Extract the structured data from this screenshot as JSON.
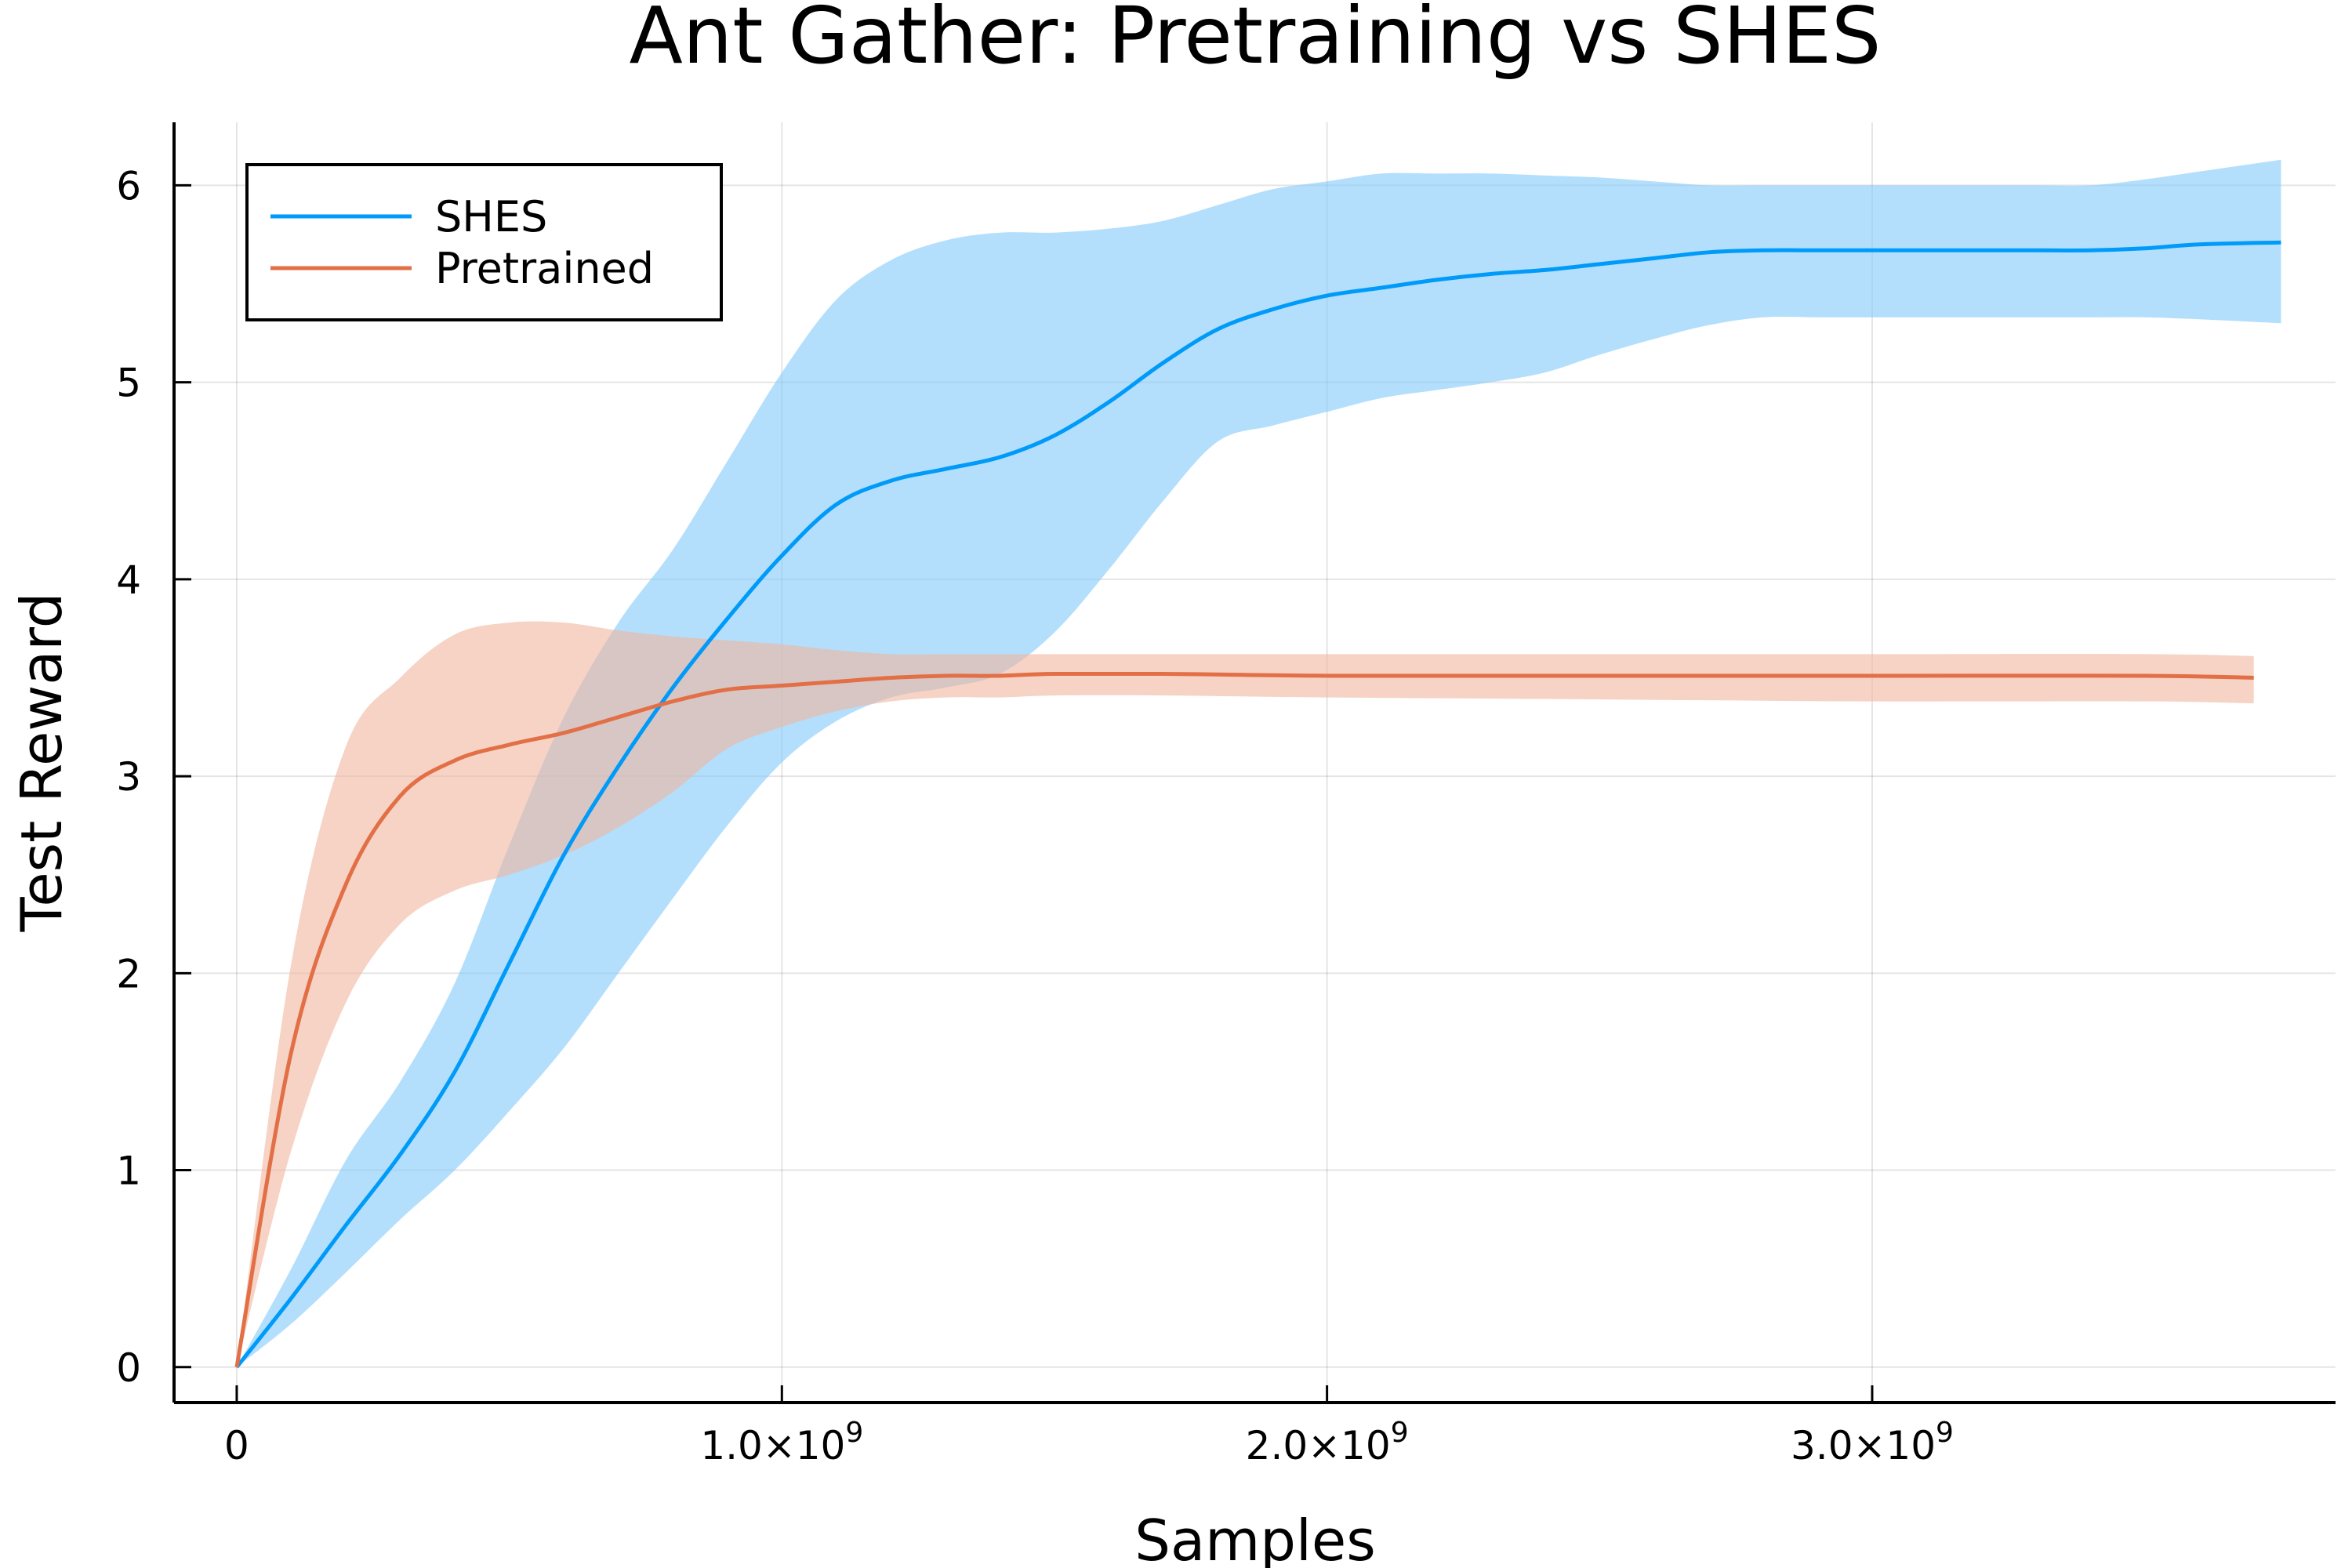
{
  "chart_data": {
    "type": "line",
    "title": "Ant Gather: Pretraining vs SHES",
    "xlabel": "Samples",
    "ylabel": "Test Reward",
    "xlim": [
      -115000000,
      3850000000
    ],
    "ylim": [
      -0.18,
      6.32
    ],
    "grid": true,
    "legend_position": "top-left",
    "x_ticks": [
      {
        "value": 0,
        "mantissa": "0",
        "exponent": ""
      },
      {
        "value": 1000000000,
        "mantissa": "1.0×10",
        "exponent": "9"
      },
      {
        "value": 2000000000,
        "mantissa": "2.0×10",
        "exponent": "9"
      },
      {
        "value": 3000000000,
        "mantissa": "3.0×10",
        "exponent": "9"
      }
    ],
    "y_ticks": [
      0,
      1,
      2,
      3,
      4,
      5,
      6
    ],
    "series": [
      {
        "name": "SHES",
        "color": "#009af9",
        "band_color": "#80c9fb",
        "x": [
          0,
          100000000,
          200000000,
          300000000,
          400000000,
          500000000,
          600000000,
          700000000,
          800000000,
          900000000,
          1000000000,
          1100000000,
          1200000000,
          1300000000,
          1400000000,
          1500000000,
          1600000000,
          1700000000,
          1800000000,
          1900000000,
          2000000000,
          2100000000,
          2200000000,
          2300000000,
          2400000000,
          2500000000,
          2600000000,
          2700000000,
          2800000000,
          2900000000,
          3000000000,
          3100000000,
          3200000000,
          3300000000,
          3400000000,
          3500000000,
          3600000000,
          3750000000
        ],
        "y": [
          0,
          0.35,
          0.72,
          1.08,
          1.5,
          2.05,
          2.6,
          3.05,
          3.45,
          3.8,
          4.12,
          4.38,
          4.5,
          4.56,
          4.62,
          4.73,
          4.9,
          5.1,
          5.27,
          5.37,
          5.44,
          5.48,
          5.52,
          5.55,
          5.57,
          5.6,
          5.63,
          5.66,
          5.67,
          5.67,
          5.67,
          5.67,
          5.67,
          5.67,
          5.67,
          5.68,
          5.7,
          5.71
        ],
        "upper": [
          0,
          0.5,
          1.05,
          1.45,
          1.95,
          2.65,
          3.3,
          3.78,
          4.15,
          4.6,
          5.05,
          5.42,
          5.62,
          5.72,
          5.76,
          5.76,
          5.78,
          5.82,
          5.9,
          5.98,
          6.02,
          6.06,
          6.06,
          6.06,
          6.05,
          6.04,
          6.02,
          6.0,
          6.0,
          6.0,
          6.0,
          6.0,
          6.0,
          6.0,
          6.0,
          6.03,
          6.07,
          6.13
        ],
        "lower": [
          0,
          0.22,
          0.48,
          0.75,
          1.0,
          1.3,
          1.62,
          2.0,
          2.38,
          2.75,
          3.07,
          3.28,
          3.4,
          3.45,
          3.52,
          3.73,
          4.05,
          4.4,
          4.7,
          4.78,
          4.85,
          4.92,
          4.96,
          5.0,
          5.05,
          5.14,
          5.22,
          5.29,
          5.33,
          5.33,
          5.33,
          5.33,
          5.33,
          5.33,
          5.33,
          5.33,
          5.32,
          5.3
        ]
      },
      {
        "name": "Pretrained",
        "color": "#e26f46",
        "band_color": "#f0b59f",
        "x": [
          0,
          100000000,
          200000000,
          300000000,
          400000000,
          500000000,
          600000000,
          700000000,
          800000000,
          900000000,
          1000000000,
          1100000000,
          1200000000,
          1300000000,
          1400000000,
          1500000000,
          1700000000,
          2000000000,
          2500000000,
          3000000000,
          3500000000,
          3700000000
        ],
        "y": [
          0,
          1.6,
          2.45,
          2.9,
          3.08,
          3.16,
          3.22,
          3.3,
          3.38,
          3.44,
          3.46,
          3.48,
          3.5,
          3.51,
          3.51,
          3.52,
          3.52,
          3.51,
          3.51,
          3.51,
          3.51,
          3.5
        ],
        "upper": [
          0,
          2.05,
          3.15,
          3.5,
          3.72,
          3.78,
          3.78,
          3.74,
          3.71,
          3.69,
          3.67,
          3.64,
          3.62,
          3.62,
          3.62,
          3.62,
          3.62,
          3.62,
          3.62,
          3.62,
          3.62,
          3.61
        ],
        "lower": [
          0,
          1.1,
          1.85,
          2.25,
          2.42,
          2.5,
          2.6,
          2.74,
          2.92,
          3.14,
          3.25,
          3.33,
          3.38,
          3.4,
          3.4,
          3.41,
          3.41,
          3.4,
          3.39,
          3.38,
          3.38,
          3.37
        ]
      }
    ]
  }
}
